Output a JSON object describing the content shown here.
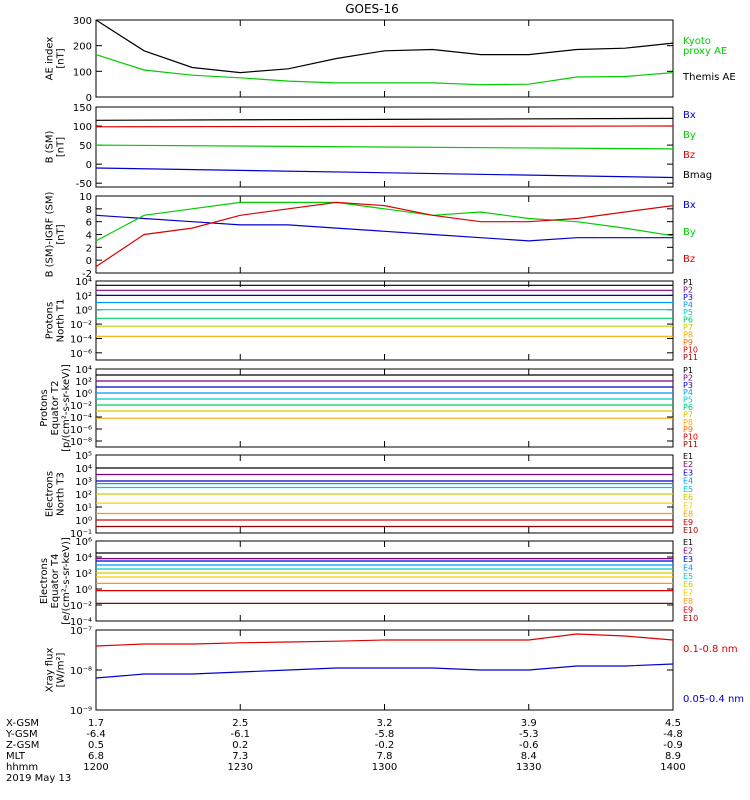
{
  "title": "GOES-16",
  "panels": [
    {
      "ylabel": [
        "AE index",
        "[nT]"
      ],
      "ticks": [
        {
          "v": 0,
          "t": "0"
        },
        {
          "v": 100,
          "t": "100"
        },
        {
          "v": 200,
          "t": "200"
        },
        {
          "v": 300,
          "t": "300"
        }
      ],
      "legend": [
        {
          "text": "Kyoto",
          "color": "#00cc00"
        },
        {
          "text": "proxy AE",
          "color": "#00cc00"
        },
        {
          "text": "Themis AE",
          "color": "#000000"
        }
      ]
    },
    {
      "ylabel": [
        "B (SM)",
        "[nT]"
      ],
      "ticks": [
        {
          "v": -50,
          "t": "-50"
        },
        {
          "v": 0,
          "t": "0"
        },
        {
          "v": 50,
          "t": "50"
        },
        {
          "v": 100,
          "t": "100"
        },
        {
          "v": 150,
          "t": "150"
        }
      ],
      "legend": [
        {
          "text": "Bx",
          "color": "#0000cc"
        },
        {
          "text": "By",
          "color": "#00cc00"
        },
        {
          "text": "Bz",
          "color": "#dd0000"
        },
        {
          "text": "Bmag",
          "color": "#000000"
        }
      ]
    },
    {
      "ylabel": [
        "B (SM)-IGRF (SM)",
        "[nT]"
      ],
      "ticks": [
        {
          "v": -2,
          "t": "-2"
        },
        {
          "v": 0,
          "t": "0"
        },
        {
          "v": 2,
          "t": "2"
        },
        {
          "v": 4,
          "t": "4"
        },
        {
          "v": 6,
          "t": "6"
        },
        {
          "v": 8,
          "t": "8"
        },
        {
          "v": 10,
          "t": "10"
        }
      ],
      "legend": [
        {
          "text": "Bx",
          "color": "#0000cc"
        },
        {
          "text": "By",
          "color": "#00cc00"
        },
        {
          "text": "Bz",
          "color": "#dd0000"
        }
      ]
    },
    {
      "ylabel": [
        "Protons",
        "North T1"
      ],
      "ticks": [
        {
          "v": -6,
          "t": "10⁻⁶"
        },
        {
          "v": -4,
          "t": "10⁻⁴"
        },
        {
          "v": -2,
          "t": "10⁻²"
        },
        {
          "v": 0,
          "t": "10⁰"
        },
        {
          "v": 2,
          "t": "10²"
        },
        {
          "v": 4,
          "t": "10⁴"
        }
      ],
      "legend": [
        {
          "text": "P1",
          "color": "#000000"
        },
        {
          "text": "P2",
          "color": "#800080"
        },
        {
          "text": "P3",
          "color": "#0000cc"
        },
        {
          "text": "P4",
          "color": "#0099ff"
        },
        {
          "text": "P5",
          "color": "#00cccc"
        },
        {
          "text": "P6",
          "color": "#00cc66"
        },
        {
          "text": "P7",
          "color": "#cccc00"
        },
        {
          "text": "P8",
          "color": "#ffaa00"
        },
        {
          "text": "P9",
          "color": "#ff6600"
        },
        {
          "text": "P10",
          "color": "#dd0000"
        },
        {
          "text": "P11",
          "color": "#990000"
        }
      ]
    },
    {
      "ylabel": [
        "Protons",
        "Equator T2",
        "[p/(cm²-s-sr-keV)]"
      ],
      "ticks": [
        {
          "v": -8,
          "t": "10⁻⁸"
        },
        {
          "v": -6,
          "t": "10⁻⁶"
        },
        {
          "v": -4,
          "t": "10⁻⁴"
        },
        {
          "v": -2,
          "t": "10⁻²"
        },
        {
          "v": 0,
          "t": "10⁰"
        },
        {
          "v": 2,
          "t": "10²"
        },
        {
          "v": 4,
          "t": "10⁴"
        }
      ],
      "legend": [
        {
          "text": "P1",
          "color": "#000000"
        },
        {
          "text": "P2",
          "color": "#800080"
        },
        {
          "text": "P3",
          "color": "#0000cc"
        },
        {
          "text": "P4",
          "color": "#0099ff"
        },
        {
          "text": "P5",
          "color": "#00cccc"
        },
        {
          "text": "P6",
          "color": "#00cc66"
        },
        {
          "text": "P7",
          "color": "#cccc00"
        },
        {
          "text": "P8",
          "color": "#ffaa00"
        },
        {
          "text": "P9",
          "color": "#ff6600"
        },
        {
          "text": "P10",
          "color": "#dd0000"
        },
        {
          "text": "P11",
          "color": "#990000"
        }
      ]
    },
    {
      "ylabel": [
        "Electrons",
        "North T3"
      ],
      "ticks": [
        {
          "v": -1,
          "t": "10⁻¹"
        },
        {
          "v": 0,
          "t": "10⁰"
        },
        {
          "v": 1,
          "t": "10¹"
        },
        {
          "v": 2,
          "t": "10²"
        },
        {
          "v": 3,
          "t": "10³"
        },
        {
          "v": 4,
          "t": "10⁴"
        },
        {
          "v": 5,
          "t": "10⁵"
        }
      ],
      "legend": [
        {
          "text": "E1",
          "color": "#000000"
        },
        {
          "text": "E2",
          "color": "#800080"
        },
        {
          "text": "E3",
          "color": "#0000cc"
        },
        {
          "text": "E4",
          "color": "#0099ff"
        },
        {
          "text": "E5",
          "color": "#00cccc"
        },
        {
          "text": "E6",
          "color": "#cccc00"
        },
        {
          "text": "E7",
          "color": "#ffcc00"
        },
        {
          "text": "E8",
          "color": "#ff9900"
        },
        {
          "text": "E9",
          "color": "#dd0000"
        },
        {
          "text": "E10",
          "color": "#990000"
        }
      ]
    },
    {
      "ylabel": [
        "Electrons",
        "Equator T4",
        "[e/(cm²-s-sr-keV)]"
      ],
      "ticks": [
        {
          "v": -4,
          "t": "10⁻⁴"
        },
        {
          "v": -2,
          "t": "10⁻²"
        },
        {
          "v": 0,
          "t": "10⁰"
        },
        {
          "v": 2,
          "t": "10²"
        },
        {
          "v": 4,
          "t": "10⁴"
        },
        {
          "v": 6,
          "t": "10⁶"
        }
      ],
      "legend": [
        {
          "text": "E1",
          "color": "#000000"
        },
        {
          "text": "E2",
          "color": "#800080"
        },
        {
          "text": "E3",
          "color": "#0000cc"
        },
        {
          "text": "E4",
          "color": "#0099ff"
        },
        {
          "text": "E5",
          "color": "#00cccc"
        },
        {
          "text": "E6",
          "color": "#cccc00"
        },
        {
          "text": "E7",
          "color": "#ffcc00"
        },
        {
          "text": "E8",
          "color": "#ff9900"
        },
        {
          "text": "E9",
          "color": "#dd0000"
        },
        {
          "text": "E10",
          "color": "#990000"
        }
      ]
    },
    {
      "ylabel": [
        "Xray flux",
        "[W/m²]"
      ],
      "ticks": [
        {
          "v": -9,
          "t": "10⁻⁹"
        },
        {
          "v": -8,
          "t": "10⁻⁸"
        },
        {
          "v": -7,
          "t": "10⁻⁷"
        }
      ],
      "legend": [
        {
          "text": "0.1-0.8 nm",
          "color": "#dd0000"
        },
        {
          "text": "0.05-0.4 nm",
          "color": "#0000cc"
        }
      ]
    }
  ],
  "footer": {
    "rows": [
      {
        "label": "X-GSM",
        "values": [
          "1.7",
          "2.5",
          "3.2",
          "3.9",
          "4.5"
        ]
      },
      {
        "label": "Y-GSM",
        "values": [
          "-6.4",
          "-6.1",
          "-5.8",
          "-5.3",
          "-4.8"
        ]
      },
      {
        "label": "Z-GSM",
        "values": [
          "0.5",
          "0.2",
          "-0.2",
          "-0.6",
          "-0.9"
        ]
      },
      {
        "label": "MLT",
        "values": [
          "6.8",
          "7.3",
          "7.8",
          "8.4",
          "8.9"
        ]
      },
      {
        "label": "hhmm",
        "values": [
          "1200",
          "1230",
          "1300",
          "1330",
          "1400"
        ]
      }
    ],
    "date": "2019 May 13"
  },
  "chart_data": [
    {
      "type": "line",
      "ylim": [
        0,
        300
      ],
      "x": [
        1200,
        1210,
        1220,
        1230,
        1240,
        1250,
        1300,
        1310,
        1320,
        1330,
        1340,
        1350,
        1400
      ],
      "series": [
        {
          "name": "Kyoto proxy AE",
          "color": "#00cc00",
          "values": [
            165,
            105,
            85,
            75,
            62,
            55,
            55,
            55,
            48,
            50,
            78,
            80,
            95
          ]
        },
        {
          "name": "Themis AE",
          "color": "#000000",
          "values": [
            300,
            180,
            115,
            95,
            110,
            150,
            180,
            185,
            165,
            165,
            185,
            190,
            210
          ]
        }
      ]
    },
    {
      "type": "line",
      "ylim": [
        -60,
        150
      ],
      "x": [
        1200,
        1400
      ],
      "series": [
        {
          "name": "Bmag",
          "color": "#000000",
          "values": [
            115,
            120
          ]
        },
        {
          "name": "Bz",
          "color": "#dd0000",
          "values": [
            98,
            100
          ]
        },
        {
          "name": "By",
          "color": "#00cc00",
          "values": [
            50,
            40
          ]
        },
        {
          "name": "Bx",
          "color": "#0000cc",
          "values": [
            -10,
            -35
          ]
        }
      ]
    },
    {
      "type": "line",
      "ylim": [
        -2,
        10
      ],
      "x": [
        1200,
        1210,
        1220,
        1230,
        1240,
        1250,
        1300,
        1310,
        1320,
        1330,
        1340,
        1350,
        1400
      ],
      "series": [
        {
          "name": "Bx",
          "color": "#0000cc",
          "values": [
            7,
            6.5,
            6,
            5.5,
            5.5,
            5,
            4.5,
            4,
            3.5,
            3,
            3.5,
            3.5,
            3.5
          ]
        },
        {
          "name": "By",
          "color": "#00cc00",
          "values": [
            3,
            7,
            8,
            9,
            9,
            9,
            8,
            7,
            7.5,
            6.5,
            6,
            5,
            3.8
          ]
        },
        {
          "name": "Bz",
          "color": "#dd0000",
          "values": [
            -1,
            4,
            5,
            7,
            8,
            9,
            8.5,
            7,
            6,
            6,
            6.5,
            7.5,
            8.5
          ]
        }
      ]
    },
    {
      "type": "line",
      "yscale": "log",
      "ylim": [
        -7,
        4
      ],
      "x": [
        1200,
        1400
      ],
      "series": [
        {
          "name": "P1",
          "color": "#000000",
          "values": [
            3.4,
            3.4
          ]
        },
        {
          "name": "P2",
          "color": "#800080",
          "values": [
            2.7,
            2.7
          ]
        },
        {
          "name": "P3",
          "color": "#0000cc",
          "values": [
            2.0,
            2.0
          ]
        },
        {
          "name": "P4",
          "color": "#0099ff",
          "values": [
            1.0,
            1.0
          ]
        },
        {
          "name": "P5",
          "color": "#00cccc",
          "values": [
            0.0,
            0.0
          ]
        },
        {
          "name": "P6",
          "color": "#00cc66",
          "values": [
            -1.2,
            -1.2
          ]
        },
        {
          "name": "P7",
          "color": "#cccc00",
          "values": [
            -2.3,
            -2.3
          ]
        },
        {
          "name": "P8",
          "color": "#ffaa00",
          "values": [
            -3.7,
            -3.7
          ]
        }
      ]
    },
    {
      "type": "line",
      "yscale": "log",
      "ylim": [
        -9,
        4
      ],
      "x": [
        1200,
        1400
      ],
      "series": [
        {
          "name": "P1",
          "color": "#000000",
          "values": [
            3.0,
            3.0
          ]
        },
        {
          "name": "P2",
          "color": "#800080",
          "values": [
            2.0,
            2.0
          ]
        },
        {
          "name": "P3",
          "color": "#0000cc",
          "values": [
            1.0,
            1.0
          ]
        },
        {
          "name": "P4",
          "color": "#0099ff",
          "values": [
            0.0,
            0.0
          ]
        },
        {
          "name": "P5",
          "color": "#00cccc",
          "values": [
            -1.0,
            -1.0
          ]
        },
        {
          "name": "P6",
          "color": "#00cc66",
          "values": [
            -2.0,
            -2.0
          ]
        },
        {
          "name": "P7",
          "color": "#cccc00",
          "values": [
            -3.0,
            -3.0
          ]
        },
        {
          "name": "P8",
          "color": "#ffaa00",
          "values": [
            -4.2,
            -4.2
          ]
        }
      ]
    },
    {
      "type": "line",
      "yscale": "log",
      "ylim": [
        -1,
        5
      ],
      "x": [
        1200,
        1400
      ],
      "series": [
        {
          "name": "E1",
          "color": "#000000",
          "values": [
            4.0,
            4.0
          ]
        },
        {
          "name": "E2",
          "color": "#800080",
          "values": [
            3.5,
            3.5
          ]
        },
        {
          "name": "E3",
          "color": "#0000cc",
          "values": [
            3.0,
            3.0
          ]
        },
        {
          "name": "E4",
          "color": "#0099ff",
          "values": [
            2.8,
            2.8
          ]
        },
        {
          "name": "E5",
          "color": "#00cccc",
          "values": [
            2.5,
            2.5
          ]
        },
        {
          "name": "E6",
          "color": "#cccc00",
          "values": [
            2.0,
            2.0
          ]
        },
        {
          "name": "E7",
          "color": "#ffcc00",
          "values": [
            1.3,
            1.3
          ]
        },
        {
          "name": "E8",
          "color": "#ff9900",
          "values": [
            0.5,
            0.5
          ]
        },
        {
          "name": "E9",
          "color": "#dd0000",
          "values": [
            0.0,
            0.0
          ]
        },
        {
          "name": "E10",
          "color": "#990000",
          "values": [
            -0.5,
            -0.5
          ]
        }
      ]
    },
    {
      "type": "line",
      "yscale": "log",
      "ylim": [
        -4,
        6
      ],
      "x": [
        1200,
        1400
      ],
      "series": [
        {
          "name": "E1",
          "color": "#000000",
          "values": [
            4.5,
            4.5
          ]
        },
        {
          "name": "E2",
          "color": "#800080",
          "values": [
            3.8,
            3.8
          ]
        },
        {
          "name": "E3",
          "color": "#0000cc",
          "values": [
            3.5,
            3.5
          ]
        },
        {
          "name": "E4",
          "color": "#0099ff",
          "values": [
            3.0,
            3.0
          ]
        },
        {
          "name": "E5",
          "color": "#00cccc",
          "values": [
            2.5,
            2.5
          ]
        },
        {
          "name": "E6",
          "color": "#cccc00",
          "values": [
            2.0,
            2.0
          ]
        },
        {
          "name": "E7",
          "color": "#ffcc00",
          "values": [
            1.5,
            1.5
          ]
        },
        {
          "name": "E8",
          "color": "#ff9900",
          "values": [
            0.7,
            0.7
          ]
        },
        {
          "name": "E9",
          "color": "#dd0000",
          "values": [
            -0.2,
            -0.2
          ]
        },
        {
          "name": "E10",
          "color": "#990000",
          "values": [
            -1.8,
            -1.8
          ]
        }
      ]
    },
    {
      "type": "line",
      "yscale": "log",
      "ylim": [
        -9,
        -7
      ],
      "x": [
        1200,
        1210,
        1220,
        1230,
        1240,
        1250,
        1300,
        1310,
        1320,
        1330,
        1340,
        1350,
        1400
      ],
      "series": [
        {
          "name": "0.1-0.8 nm",
          "color": "#dd0000",
          "values": [
            -7.4,
            -7.35,
            -7.35,
            -7.32,
            -7.3,
            -7.28,
            -7.25,
            -7.25,
            -7.25,
            -7.25,
            -7.1,
            -7.15,
            -7.25
          ]
        },
        {
          "name": "0.05-0.4 nm",
          "color": "#0000cc",
          "values": [
            -8.2,
            -8.1,
            -8.1,
            -8.05,
            -8.0,
            -7.95,
            -7.95,
            -7.95,
            -8.0,
            -8.0,
            -7.9,
            -7.9,
            -7.85
          ]
        }
      ]
    }
  ]
}
